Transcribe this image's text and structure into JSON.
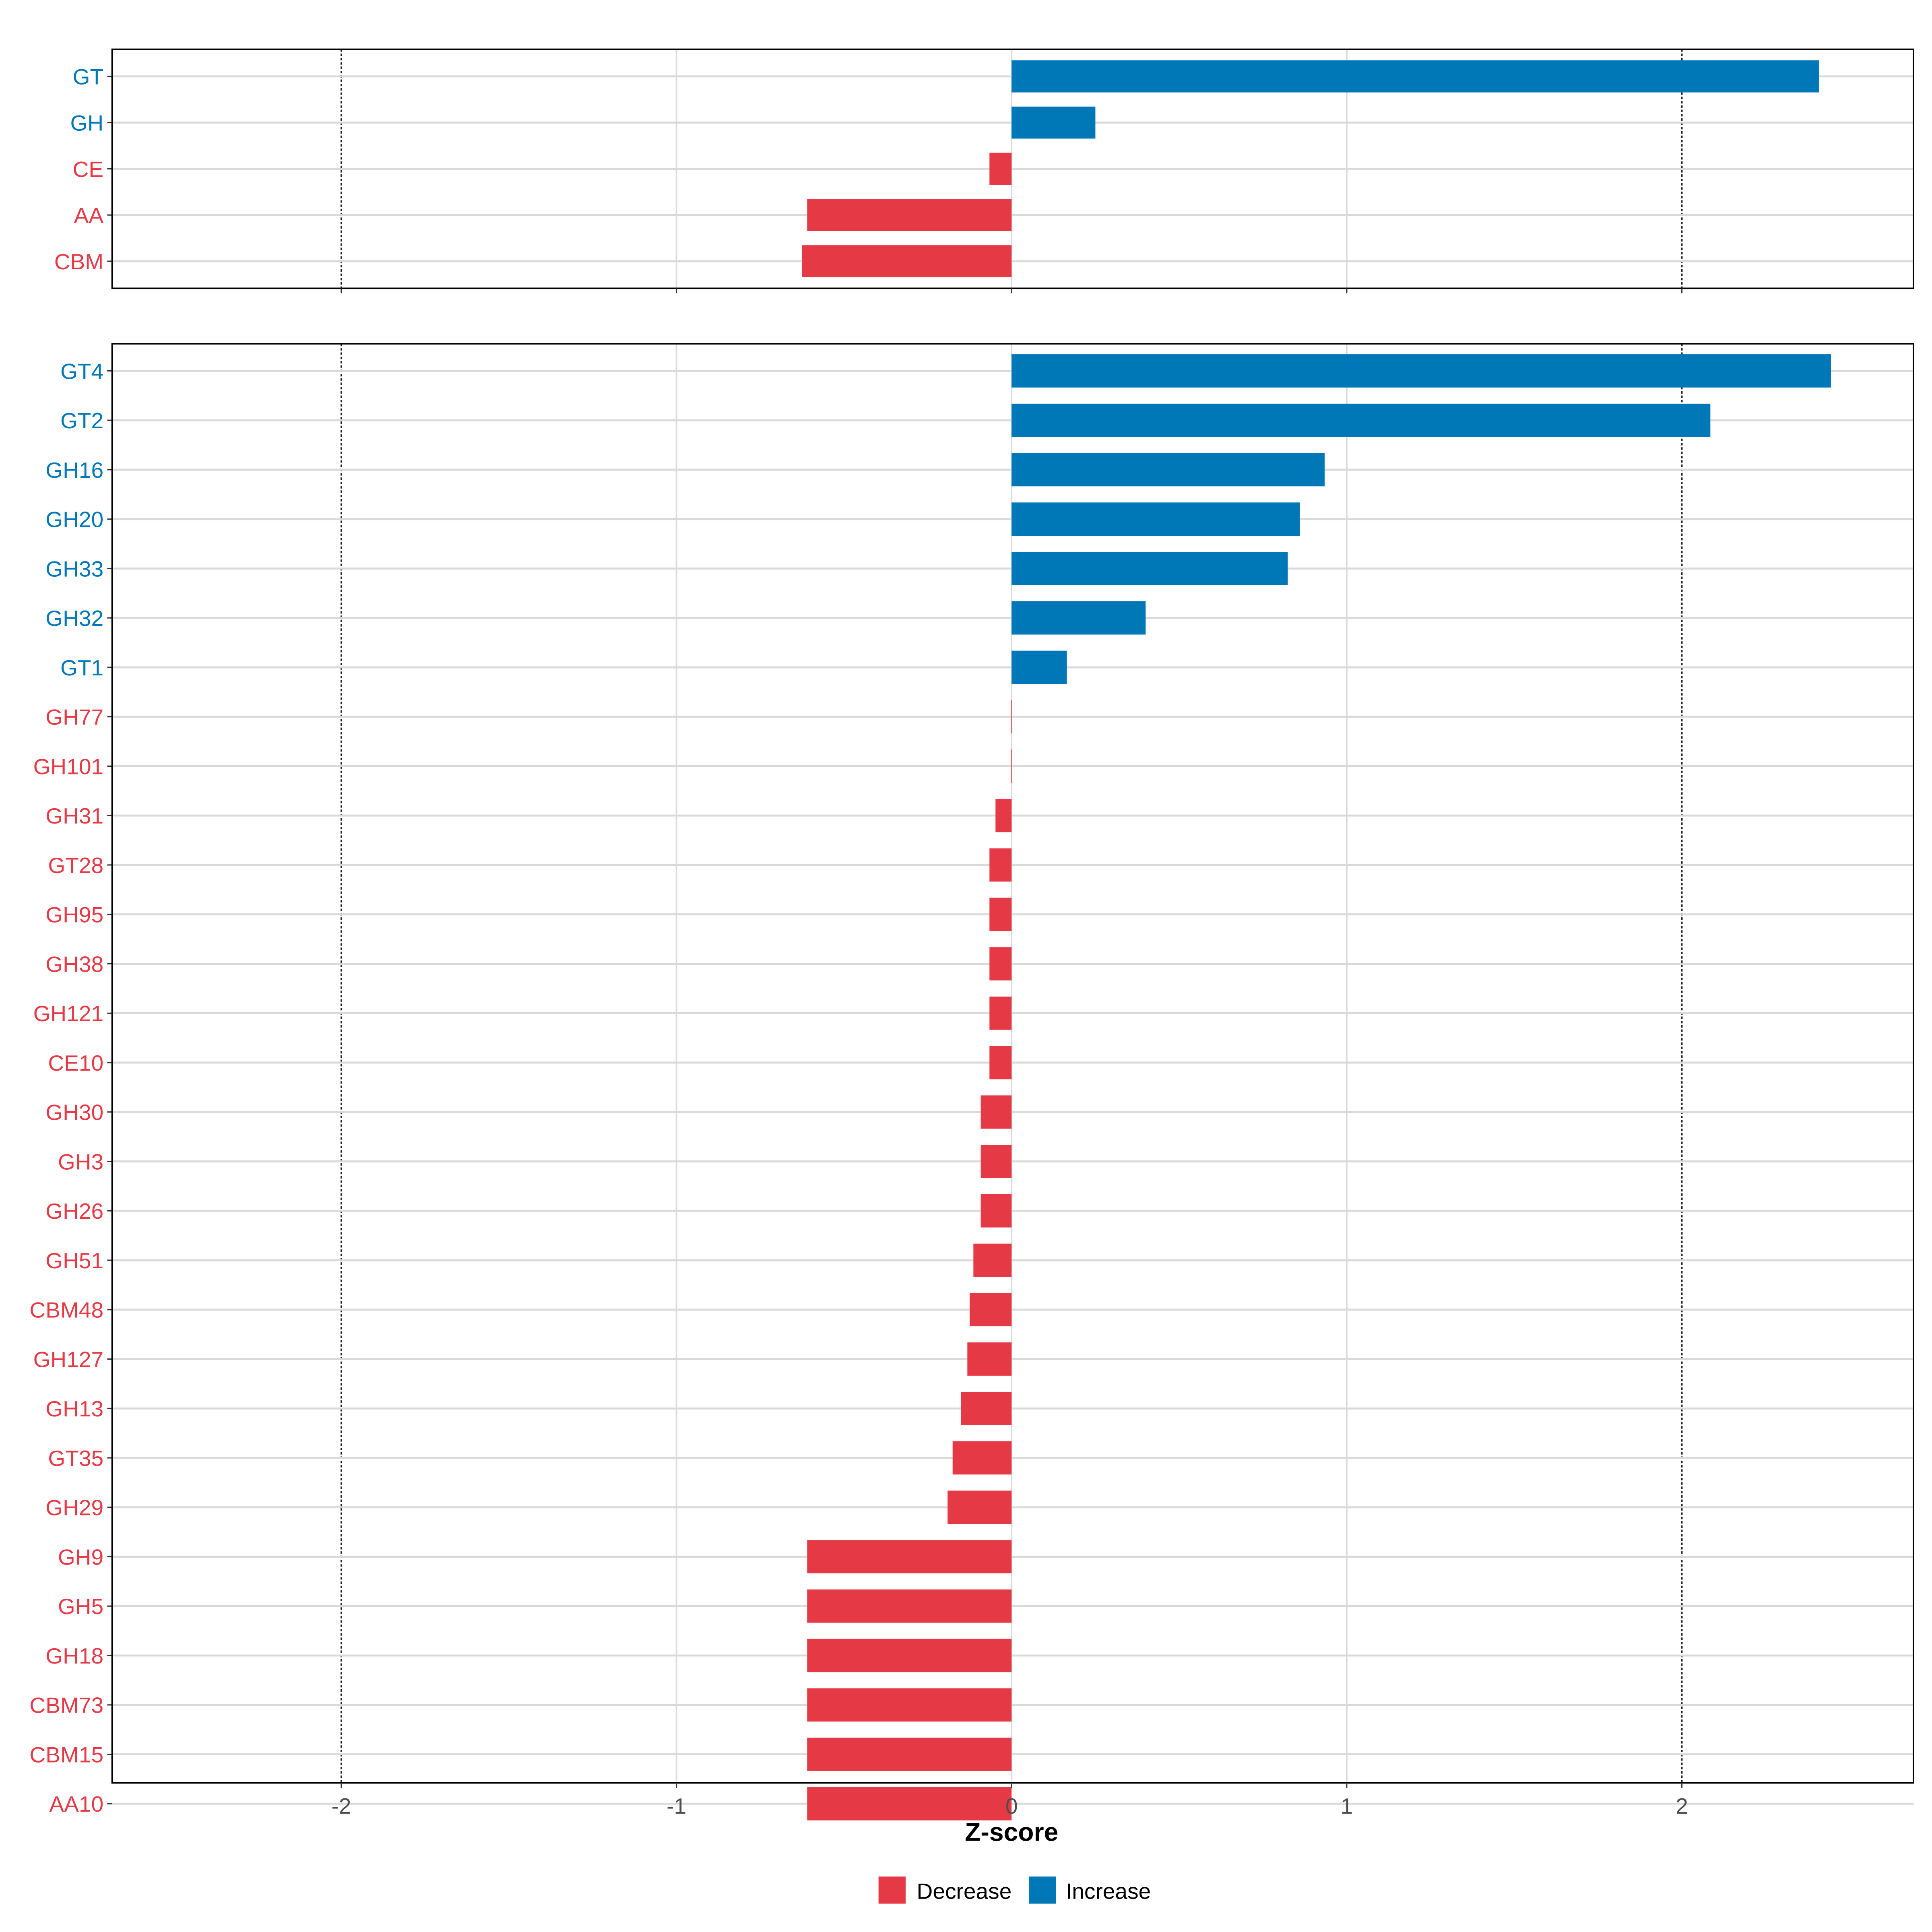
{
  "chart_data": [
    {
      "type": "bar",
      "orientation": "horizontal",
      "panel": "top",
      "categories": [
        "GT",
        "GH",
        "CE",
        "AA",
        "CBM"
      ],
      "values": [
        2.41,
        0.25,
        -0.066,
        -0.61,
        -0.625
      ],
      "xlim": [
        -2.69,
        2.69
      ],
      "grid": true
    },
    {
      "type": "bar",
      "orientation": "horizontal",
      "panel": "bottom",
      "categories": [
        "GT4",
        "GT2",
        "GH16",
        "GH20",
        "GH33",
        "GH32",
        "GT1",
        "GH77",
        "GH101",
        "GH31",
        "GT28",
        "GH95",
        "GH38",
        "GH121",
        "CE10",
        "GH30",
        "GH3",
        "GH26",
        "GH51",
        "CBM48",
        "GH127",
        "GH13",
        "GT35",
        "GH29",
        "GH9",
        "GH5",
        "GH18",
        "CBM73",
        "CBM15",
        "AA10"
      ],
      "values": [
        2.445,
        2.085,
        0.934,
        0.86,
        0.824,
        0.4,
        0.165,
        -0.002,
        -0.002,
        -0.048,
        -0.066,
        -0.066,
        -0.066,
        -0.066,
        -0.066,
        -0.092,
        -0.092,
        -0.092,
        -0.114,
        -0.125,
        -0.132,
        -0.151,
        -0.176,
        -0.191,
        -0.61,
        -0.61,
        -0.61,
        -0.61,
        -0.61,
        -0.61
      ],
      "xlim": [
        -2.69,
        2.69
      ],
      "grid": true
    }
  ],
  "axis": {
    "xlabel": "Z-score",
    "ticks": [
      -2,
      -1,
      0,
      1,
      2
    ],
    "tick_labels": [
      "-2",
      "-1",
      "0",
      "1",
      "2"
    ],
    "reference_lines": [
      -2,
      2
    ]
  },
  "legend": {
    "placement": "bottom",
    "items": [
      {
        "label": "Decrease",
        "color": "#E63946"
      },
      {
        "label": "Increase",
        "color": "#0077B6"
      }
    ]
  },
  "colors": {
    "decrease": "#E63946",
    "increase": "#0077B6",
    "grid": "#D9D9D9"
  }
}
